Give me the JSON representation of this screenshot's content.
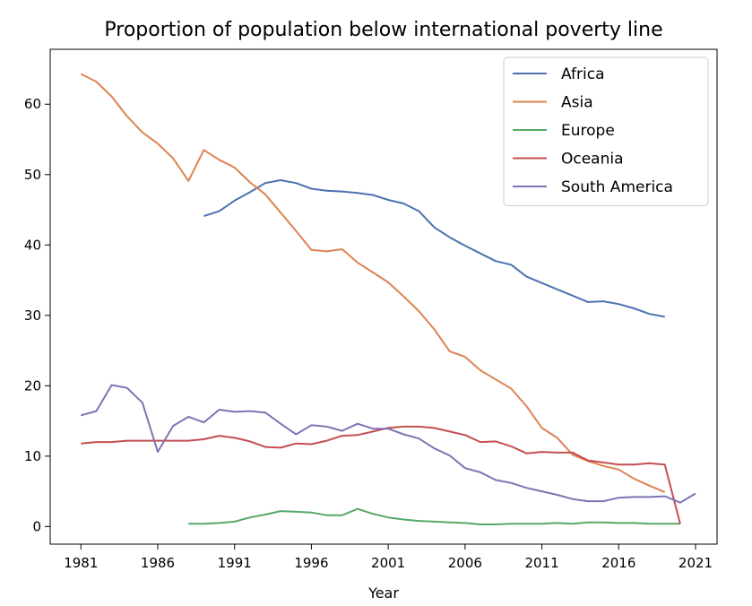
{
  "chart_data": {
    "type": "line",
    "title": "Proportion of population below international poverty line",
    "xlabel": "Year",
    "ylabel": "",
    "xlim": [
      1979.9,
      1022.1
    ],
    "ylim": [
      -2.5,
      67.8
    ],
    "xticks": [
      1981,
      1986,
      1991,
      1996,
      2001,
      2006,
      2011,
      2016,
      2021
    ],
    "yticks": [
      0,
      10,
      20,
      30,
      40,
      50,
      60
    ],
    "legend_position": "top-right",
    "series": [
      {
        "name": "Africa",
        "color": "#4c72b0",
        "x": [
          1989,
          1990,
          1991,
          1992,
          1993,
          1994,
          1995,
          1996,
          1997,
          1998,
          1999,
          2000,
          2001,
          2002,
          2003,
          2004,
          2005,
          2006,
          2007,
          2008,
          2009,
          2010,
          2011,
          2012,
          2013,
          2014,
          2015,
          2016,
          2017,
          2018,
          2019
        ],
        "y": [
          44.1,
          44.8,
          46.3,
          47.5,
          48.8,
          49.2,
          48.8,
          48.0,
          47.7,
          47.6,
          47.4,
          47.1,
          46.4,
          45.9,
          44.8,
          42.5,
          41.1,
          39.9,
          38.8,
          37.7,
          37.2,
          35.5,
          34.6,
          33.7,
          32.8,
          31.9,
          32.0,
          31.6,
          31.0,
          30.2,
          29.8
        ]
      },
      {
        "name": "Asia",
        "color": "#dd8452",
        "x": [
          1981,
          1982,
          1983,
          1984,
          1985,
          1986,
          1987,
          1988,
          1989,
          1990,
          1991,
          1992,
          1993,
          1994,
          1995,
          1996,
          1997,
          1998,
          1999,
          2000,
          2001,
          2002,
          2003,
          2004,
          2005,
          2006,
          2007,
          2008,
          2009,
          2010,
          2011,
          2012,
          2013,
          2014,
          2015,
          2016,
          2017,
          2018,
          2019
        ],
        "y": [
          64.3,
          63.2,
          61.1,
          58.3,
          56.0,
          54.4,
          52.3,
          49.1,
          53.5,
          52.1,
          51.0,
          48.9,
          47.2,
          44.6,
          42.0,
          39.3,
          39.1,
          39.4,
          37.5,
          36.1,
          34.7,
          32.7,
          30.6,
          28.0,
          24.9,
          24.1,
          22.2,
          20.9,
          19.6,
          17.1,
          14.0,
          12.6,
          10.2,
          9.3,
          8.6,
          8.1,
          6.8,
          5.8,
          4.9
        ]
      },
      {
        "name": "Europe",
        "color": "#55a868",
        "x": [
          1988,
          1989,
          1990,
          1991,
          1992,
          1993,
          1994,
          1995,
          1996,
          1997,
          1998,
          1999,
          2000,
          2001,
          2002,
          2003,
          2004,
          2005,
          2006,
          2007,
          2008,
          2009,
          2010,
          2011,
          2012,
          2013,
          2014,
          2015,
          2016,
          2017,
          2018,
          2019,
          2020
        ],
        "y": [
          0.4,
          0.4,
          0.5,
          0.7,
          1.3,
          1.7,
          2.2,
          2.1,
          2.0,
          1.6,
          1.6,
          2.5,
          1.8,
          1.3,
          1.0,
          0.8,
          0.7,
          0.6,
          0.5,
          0.3,
          0.3,
          0.4,
          0.4,
          0.4,
          0.5,
          0.4,
          0.6,
          0.6,
          0.5,
          0.5,
          0.4,
          0.4,
          0.4
        ]
      },
      {
        "name": "Oceania",
        "color": "#c44e52",
        "x": [
          1981,
          1982,
          1983,
          1984,
          1985,
          1986,
          1987,
          1988,
          1989,
          1990,
          1991,
          1992,
          1993,
          1994,
          1995,
          1996,
          1997,
          1998,
          1999,
          2000,
          2001,
          2002,
          2003,
          2004,
          2005,
          2006,
          2007,
          2008,
          2009,
          2010,
          2011,
          2012,
          2013,
          2014,
          2015,
          2016,
          2017,
          2018,
          2019,
          2020
        ],
        "y": [
          11.8,
          12.0,
          12.0,
          12.2,
          12.2,
          12.2,
          12.2,
          12.2,
          12.4,
          12.9,
          12.6,
          12.1,
          11.3,
          11.2,
          11.8,
          11.7,
          12.2,
          12.9,
          13.0,
          13.5,
          14.0,
          14.2,
          14.2,
          14.0,
          13.5,
          13.0,
          12.0,
          12.1,
          11.4,
          10.4,
          10.6,
          10.5,
          10.5,
          9.4,
          9.1,
          8.8,
          8.8,
          9.0,
          8.8,
          0.4
        ]
      },
      {
        "name": "South America",
        "color": "#8172b3",
        "x": [
          1981,
          1982,
          1983,
          1984,
          1985,
          1986,
          1987,
          1988,
          1989,
          1990,
          1991,
          1992,
          1993,
          1994,
          1995,
          1996,
          1997,
          1998,
          1999,
          2000,
          2001,
          2002,
          2003,
          2004,
          2005,
          2006,
          2007,
          2008,
          2009,
          2010,
          2011,
          2012,
          2013,
          2014,
          2015,
          2016,
          2017,
          2018,
          2019,
          2020,
          2021
        ],
        "y": [
          15.8,
          16.4,
          20.1,
          19.7,
          17.6,
          10.6,
          14.3,
          15.6,
          14.8,
          16.6,
          16.3,
          16.4,
          16.2,
          14.6,
          13.1,
          14.4,
          14.2,
          13.6,
          14.6,
          13.9,
          13.9,
          13.1,
          12.5,
          11.1,
          10.1,
          8.3,
          7.7,
          6.6,
          6.2,
          5.5,
          5.0,
          4.5,
          3.9,
          3.6,
          3.6,
          4.1,
          4.2,
          4.2,
          4.3,
          3.4,
          4.7
        ]
      }
    ]
  }
}
